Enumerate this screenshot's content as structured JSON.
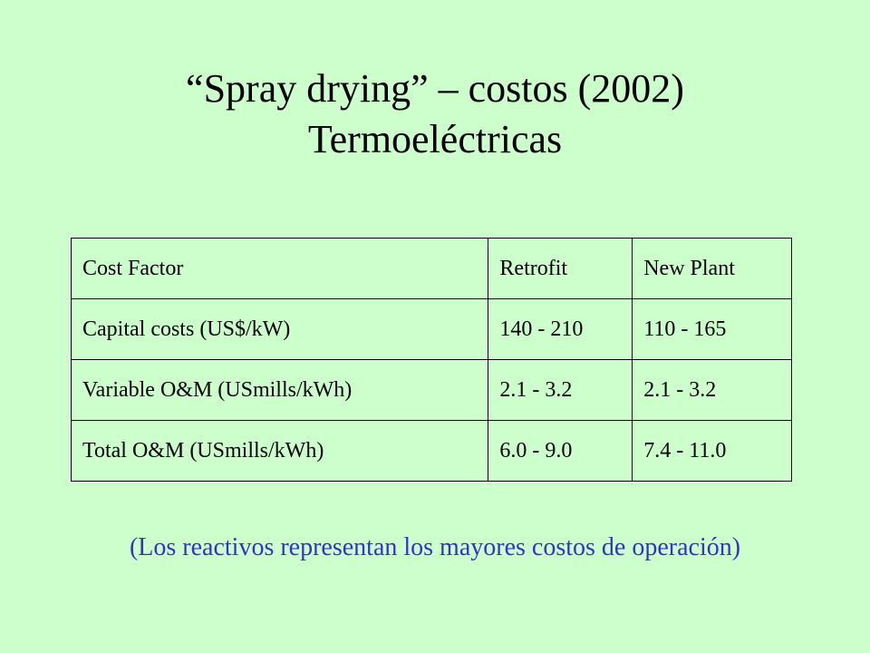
{
  "slide": {
    "title_line1": "“Spray drying” – costos (2002)",
    "title_line2": "Termoeléctricas",
    "background_color": "#ccffcc",
    "footnote_color": "#3333cc"
  },
  "table": {
    "headers": [
      "Cost Factor",
      "Retrofit",
      "New Plant"
    ],
    "rows": [
      [
        "Capital costs (US$/kW)",
        "140 - 210",
        "110 - 165"
      ],
      [
        "Variable O&M (USmills/kWh)",
        "2.1 - 3.2",
        "2.1 - 3.2"
      ],
      [
        "Total O&M (USmills/kWh)",
        "6.0 - 9.0",
        "7.4 - 11.0"
      ]
    ]
  },
  "footnote": "(Los reactivos representan los mayores costos de operación)"
}
